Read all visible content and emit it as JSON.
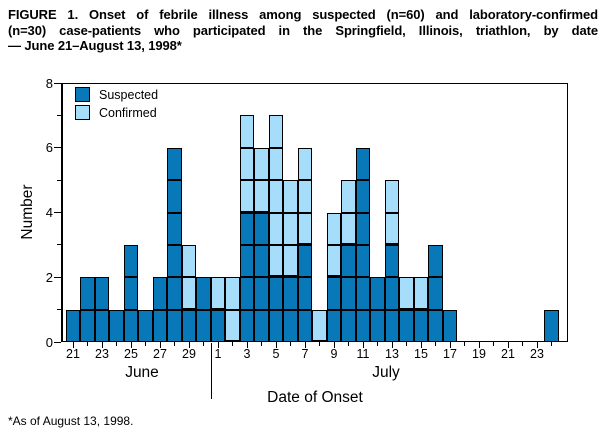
{
  "figure": {
    "title_lines": [
      "FIGURE 1. Onset of febrile illness among suspected (n=60) and laboratory-confirmed",
      "(n=30) case-patients who participated in the Springfield, Illinois, triathlon, by date",
      "— June 21–August 13, 1998*"
    ],
    "footnote": "*As of August 13, 1998."
  },
  "chart_data": {
    "type": "bar",
    "stacked": true,
    "unit_cells": true,
    "title": "FIGURE 1. Onset of febrile illness among suspected (n=60) and laboratory-confirmed (n=30) case-patients who participated in the Springfield, Illinois, triathlon, by date — June 21–August 13, 1998",
    "xlabel": "Date of Onset",
    "ylabel": "Number",
    "ylim": [
      0,
      8
    ],
    "y_major_ticks": [
      0,
      2,
      4,
      6,
      8
    ],
    "grid": false,
    "legend_position": "upper-left",
    "legend": [
      {
        "label": "Suspected",
        "color": "#0878b8"
      },
      {
        "label": "Confirmed",
        "color": "#a5ddfa"
      }
    ],
    "x_axis": {
      "label": "Date of Onset",
      "months": [
        "June",
        "July"
      ],
      "labeled_ticks": [
        "21",
        "23",
        "25",
        "27",
        "29",
        "1",
        "3",
        "5",
        "7",
        "9",
        "11",
        "13",
        "15",
        "17",
        "19",
        "21",
        "23"
      ]
    },
    "y_axis": {
      "label": "Number",
      "min": 0,
      "max": 8,
      "tick_labels": [
        "0",
        "2",
        "4",
        "6",
        "8"
      ]
    },
    "series": [
      {
        "name": "Suspected",
        "color": "#0878b8"
      },
      {
        "name": "Confirmed",
        "color": "#a5ddfa"
      }
    ],
    "days": [
      {
        "month": "June",
        "day": 21,
        "suspected": 1,
        "confirmed": 0
      },
      {
        "month": "June",
        "day": 22,
        "suspected": 2,
        "confirmed": 0
      },
      {
        "month": "June",
        "day": 23,
        "suspected": 2,
        "confirmed": 0
      },
      {
        "month": "June",
        "day": 24,
        "suspected": 1,
        "confirmed": 0
      },
      {
        "month": "June",
        "day": 25,
        "suspected": 3,
        "confirmed": 0
      },
      {
        "month": "June",
        "day": 26,
        "suspected": 1,
        "confirmed": 0
      },
      {
        "month": "June",
        "day": 27,
        "suspected": 2,
        "confirmed": 0
      },
      {
        "month": "June",
        "day": 28,
        "suspected": 6,
        "confirmed": 0
      },
      {
        "month": "June",
        "day": 29,
        "suspected": 1,
        "confirmed": 2
      },
      {
        "month": "June",
        "day": 30,
        "suspected": 2,
        "confirmed": 0
      },
      {
        "month": "July",
        "day": 1,
        "suspected": 1,
        "confirmed": 1
      },
      {
        "month": "July",
        "day": 2,
        "suspected": 0,
        "confirmed": 2
      },
      {
        "month": "July",
        "day": 3,
        "suspected": 4,
        "confirmed": 3
      },
      {
        "month": "July",
        "day": 4,
        "suspected": 4,
        "confirmed": 2
      },
      {
        "month": "July",
        "day": 5,
        "suspected": 2,
        "confirmed": 5
      },
      {
        "month": "July",
        "day": 6,
        "suspected": 2,
        "confirmed": 3
      },
      {
        "month": "July",
        "day": 7,
        "suspected": 3,
        "confirmed": 3
      },
      {
        "month": "July",
        "day": 8,
        "suspected": 0,
        "confirmed": 1
      },
      {
        "month": "July",
        "day": 9,
        "suspected": 2,
        "confirmed": 2
      },
      {
        "month": "July",
        "day": 10,
        "suspected": 3,
        "confirmed": 2
      },
      {
        "month": "July",
        "day": 11,
        "suspected": 6,
        "confirmed": 0
      },
      {
        "month": "July",
        "day": 12,
        "suspected": 2,
        "confirmed": 0
      },
      {
        "month": "July",
        "day": 13,
        "suspected": 3,
        "confirmed": 2
      },
      {
        "month": "July",
        "day": 14,
        "suspected": 1,
        "confirmed": 1
      },
      {
        "month": "July",
        "day": 15,
        "suspected": 1,
        "confirmed": 1
      },
      {
        "month": "July",
        "day": 16,
        "suspected": 3,
        "confirmed": 0
      },
      {
        "month": "July",
        "day": 17,
        "suspected": 1,
        "confirmed": 0
      },
      {
        "month": "July",
        "day": 18,
        "suspected": 0,
        "confirmed": 0
      },
      {
        "month": "July",
        "day": 19,
        "suspected": 0,
        "confirmed": 0
      },
      {
        "month": "July",
        "day": 20,
        "suspected": 0,
        "confirmed": 0
      },
      {
        "month": "July",
        "day": 21,
        "suspected": 0,
        "confirmed": 0
      },
      {
        "month": "July",
        "day": 22,
        "suspected": 0,
        "confirmed": 0
      },
      {
        "month": "July",
        "day": 23,
        "suspected": 0,
        "confirmed": 0
      },
      {
        "month": "July",
        "day": 24,
        "suspected": 1,
        "confirmed": 0
      }
    ],
    "totals": {
      "suspected": 60,
      "confirmed": 30
    }
  }
}
